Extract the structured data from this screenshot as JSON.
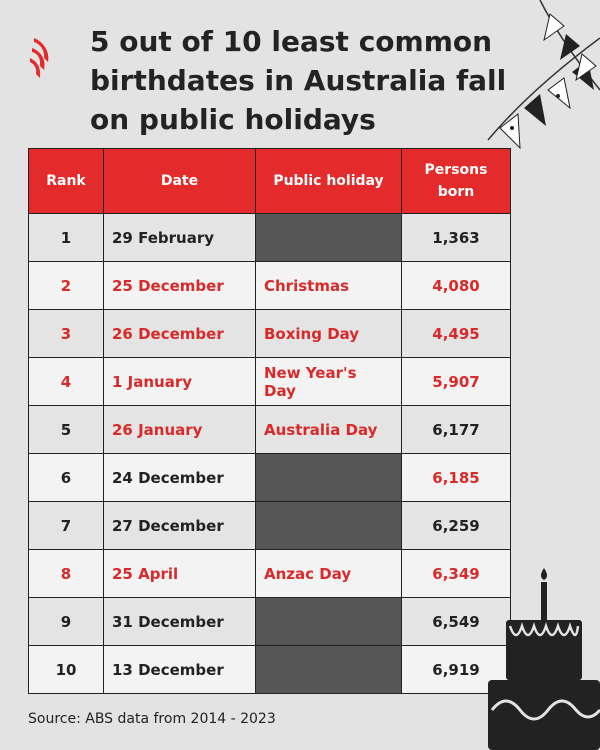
{
  "title": "5 out of 10 least common birthdates in Australia fall on public holidays",
  "colors": {
    "accent": "#e32b2b",
    "highlight_text": "#d92a2a",
    "blank_cell": "#565656"
  },
  "table": {
    "headers": [
      "Rank",
      "Date",
      "Public holiday",
      "Persons born"
    ],
    "rows": [
      {
        "rank": "1",
        "date": "29 February",
        "holiday": "",
        "persons": "1,363",
        "rank_red": false,
        "date_red": false,
        "persons_red": false
      },
      {
        "rank": "2",
        "date": "25 December",
        "holiday": "Christmas",
        "persons": "4,080",
        "rank_red": true,
        "date_red": true,
        "persons_red": true
      },
      {
        "rank": "3",
        "date": "26 December",
        "holiday": "Boxing Day",
        "persons": "4,495",
        "rank_red": true,
        "date_red": true,
        "persons_red": true
      },
      {
        "rank": "4",
        "date": "1 January",
        "holiday": "New Year's Day",
        "persons": "5,907",
        "rank_red": true,
        "date_red": true,
        "persons_red": true
      },
      {
        "rank": "5",
        "date": "26 January",
        "holiday": "Australia Day",
        "persons": "6,177",
        "rank_red": false,
        "date_red": true,
        "persons_red": false
      },
      {
        "rank": "6",
        "date": "24 December",
        "holiday": "",
        "persons": "6,185",
        "rank_red": false,
        "date_red": false,
        "persons_red": true
      },
      {
        "rank": "7",
        "date": "27 December",
        "holiday": "",
        "persons": "6,259",
        "rank_red": false,
        "date_red": false,
        "persons_red": false
      },
      {
        "rank": "8",
        "date": "25 April",
        "holiday": "Anzac Day",
        "persons": "6,349",
        "rank_red": true,
        "date_red": true,
        "persons_red": true
      },
      {
        "rank": "9",
        "date": "31 December",
        "holiday": "",
        "persons": "6,549",
        "rank_red": false,
        "date_red": false,
        "persons_red": false
      },
      {
        "rank": "10",
        "date": "13 December",
        "holiday": "",
        "persons": "6,919",
        "rank_red": false,
        "date_red": false,
        "persons_red": false
      }
    ]
  },
  "source": "Source: ABS data from 2014 - 2023",
  "icons": {
    "logo": "sbs-logo-icon",
    "bunting": "bunting-icon",
    "cake": "birthday-cake-icon"
  }
}
